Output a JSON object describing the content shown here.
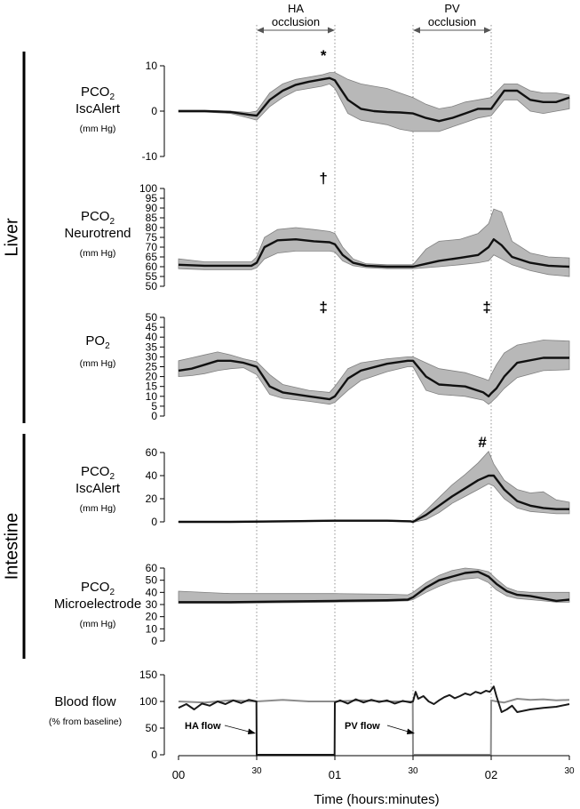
{
  "chart_data": {
    "type": "line",
    "xlabel": "Time (hours:minutes)",
    "x_ticks": [
      {
        "t": 0,
        "label": "00"
      },
      {
        "t": 30,
        "label": "30"
      },
      {
        "t": 60,
        "label": "01"
      },
      {
        "t": 90,
        "label": "30"
      },
      {
        "t": 120,
        "label": "02"
      },
      {
        "t": 150,
        "label": "30"
      }
    ],
    "xlim": [
      0,
      150
    ],
    "occlusions": [
      {
        "label_line1": "HA",
        "label_line2": "occlusion",
        "start": 30,
        "end": 60
      },
      {
        "label_line1": "PV",
        "label_line2": "occlusion",
        "start": 90,
        "end": 120
      }
    ],
    "sections": [
      {
        "name": "Liver",
        "panels": [
          0,
          1,
          2
        ]
      },
      {
        "name": "Intestine",
        "panels": [
          3,
          4
        ]
      }
    ],
    "panels": [
      {
        "id": "liver-pco2-iscalert",
        "label_main": "PCO",
        "label_sub": "2",
        "label_line2": "IscAlert",
        "unit": "(mm Hg)",
        "ylim": [
          -10,
          10
        ],
        "yticks": [
          -10,
          0,
          10
        ],
        "marker": "*",
        "marker_t": 58,
        "series": {
          "t": [
            0,
            10,
            20,
            27,
            30,
            35,
            40,
            45,
            50,
            55,
            58,
            60,
            65,
            70,
            75,
            80,
            85,
            90,
            95,
            100,
            105,
            110,
            115,
            120,
            125,
            130,
            135,
            140,
            145,
            150
          ],
          "mean": [
            0,
            0,
            -0.2,
            -0.8,
            -1,
            2.5,
            4.5,
            5.8,
            6.5,
            7,
            7.3,
            6.8,
            2.5,
            0.5,
            0,
            -0.2,
            -0.3,
            -0.5,
            -1.5,
            -2.2,
            -1.5,
            -0.5,
            0.5,
            0.5,
            4.5,
            4.5,
            2.5,
            2,
            2,
            3
          ],
          "upper": [
            0.2,
            0.2,
            0,
            -0.3,
            0,
            4,
            6,
            7,
            7.5,
            8,
            8.5,
            8.5,
            7,
            6,
            5.5,
            5,
            4,
            3,
            1.5,
            0.5,
            1,
            2,
            2.5,
            3,
            6,
            6,
            4.5,
            4,
            4,
            3.5
          ],
          "lower": [
            -0.2,
            -0.2,
            -0.5,
            -1.5,
            -2,
            1,
            3,
            4.5,
            5,
            5.5,
            6,
            5,
            -0.5,
            -2,
            -2.5,
            -3,
            -4,
            -4.5,
            -4.5,
            -4.5,
            -3.5,
            -2.5,
            -1.5,
            -1,
            2.5,
            2.5,
            0,
            -0.5,
            0,
            0.5
          ]
        }
      },
      {
        "id": "liver-pco2-neurotrend",
        "label_main": "PCO",
        "label_sub": "2",
        "label_line2": "Neurotrend",
        "unit": "(mm Hg)",
        "ylim": [
          50,
          100
        ],
        "yticks": [
          50,
          55,
          60,
          65,
          70,
          75,
          80,
          85,
          90,
          95,
          100
        ],
        "marker": "†",
        "marker_t": 58,
        "series": {
          "t": [
            0,
            10,
            20,
            28,
            30,
            33,
            38,
            45,
            52,
            58,
            60,
            63,
            67,
            72,
            80,
            88,
            90,
            95,
            100,
            108,
            115,
            119,
            121,
            124,
            128,
            135,
            142,
            150
          ],
          "mean": [
            61,
            60.5,
            60.5,
            60.5,
            62,
            70,
            73.5,
            74,
            73,
            72.5,
            71.5,
            66,
            62,
            60.5,
            60,
            60,
            60,
            61.5,
            63,
            64.5,
            66,
            70,
            74,
            71,
            65,
            62,
            60.5,
            60
          ],
          "upper": [
            64,
            62.5,
            62.5,
            62.5,
            65,
            75,
            79,
            80,
            79,
            78,
            77,
            70,
            64,
            61.5,
            61,
            61,
            61,
            69,
            73,
            74,
            77,
            82,
            89.5,
            88,
            73,
            67,
            65,
            64.5
          ],
          "lower": [
            59,
            58.5,
            58.5,
            58.5,
            59.5,
            64,
            67,
            68,
            68,
            68,
            67.5,
            63,
            60.5,
            59.5,
            59,
            59,
            59,
            59.5,
            60,
            61,
            62,
            63,
            66,
            64,
            61,
            58,
            56,
            55
          ]
        }
      },
      {
        "id": "liver-po2",
        "label_main": "PO",
        "label_sub": "2",
        "label_line2": "",
        "unit": "(mm Hg)",
        "ylim": [
          0,
          50
        ],
        "yticks": [
          0,
          5,
          10,
          15,
          20,
          25,
          30,
          35,
          40,
          45,
          50
        ],
        "marker": "‡",
        "marker_t": 58,
        "marker2": "‡",
        "marker2_t": 119,
        "series": {
          "t": [
            0,
            5,
            10,
            15,
            20,
            25,
            30,
            35,
            40,
            50,
            58,
            60,
            65,
            70,
            80,
            88,
            90,
            95,
            100,
            110,
            117,
            119,
            120,
            122,
            125,
            130,
            140,
            150
          ],
          "mean": [
            23,
            24,
            26,
            28,
            28,
            27,
            25,
            15,
            12,
            10,
            8.5,
            10,
            19,
            23,
            26.5,
            28,
            28,
            20,
            16,
            15,
            12,
            10,
            11.5,
            14,
            20,
            27,
            29.5,
            29.5
          ],
          "upper": [
            28,
            29.5,
            31,
            32.5,
            31,
            29,
            27.5,
            21,
            16,
            13,
            12,
            15,
            24,
            27,
            29,
            30,
            30,
            27,
            24,
            22,
            19,
            18,
            21,
            26,
            32,
            36,
            38.5,
            38
          ],
          "lower": [
            20,
            20.5,
            21.5,
            23,
            24,
            24.5,
            21,
            11,
            9,
            7.5,
            6,
            7,
            13,
            18,
            22.5,
            25,
            25,
            13,
            11,
            10,
            8,
            6,
            7,
            9.5,
            14,
            19.5,
            23,
            23.5
          ]
        }
      },
      {
        "id": "intestine-pco2-iscalert",
        "label_main": "PCO",
        "label_sub": "2",
        "label_line2": "IscAlert",
        "unit": "(mm Hg)",
        "ylim": [
          0,
          60
        ],
        "yticks": [
          0,
          20,
          40,
          60
        ],
        "marker": "#",
        "marker_t": 119,
        "series": {
          "t": [
            0,
            20,
            40,
            60,
            80,
            89,
            90,
            95,
            100,
            105,
            110,
            115,
            119,
            121,
            125,
            130,
            135,
            140,
            145,
            150
          ],
          "mean": [
            0,
            0,
            0.5,
            1,
            1,
            0.5,
            0,
            6,
            14,
            22,
            29,
            36,
            40,
            40,
            28,
            18,
            14,
            12,
            11,
            11
          ],
          "upper": [
            0.5,
            0.5,
            1,
            1.5,
            1.5,
            1,
            0.5,
            10,
            21,
            32,
            41,
            51,
            61,
            50,
            36,
            28,
            25,
            26,
            19,
            17
          ],
          "lower": [
            -0.5,
            -0.5,
            0,
            0.5,
            0.5,
            0,
            -0.5,
            2,
            8,
            16,
            22,
            28,
            33,
            31,
            20,
            12,
            9,
            8,
            7,
            7
          ]
        }
      },
      {
        "id": "intestine-pco2-microelectrode",
        "label_main": "PCO",
        "label_sub": "2",
        "label_line2": "Microelectrode",
        "unit": "(mm Hg)",
        "ylim": [
          0,
          60
        ],
        "yticks": [
          0,
          10,
          20,
          30,
          40,
          50,
          60
        ],
        "series": {
          "t": [
            0,
            20,
            40,
            60,
            80,
            88,
            90,
            95,
            100,
            105,
            110,
            115,
            119,
            122,
            126,
            130,
            135,
            140,
            145,
            150
          ],
          "mean": [
            32,
            32,
            32.5,
            33,
            33.5,
            34,
            36,
            44,
            50,
            53,
            56,
            57,
            53,
            47,
            41,
            38,
            37,
            35,
            33,
            34
          ],
          "upper": [
            41,
            39,
            39,
            39,
            38.5,
            38,
            40,
            48,
            54,
            58,
            60,
            59,
            57,
            51,
            44,
            41,
            40,
            40,
            40,
            40
          ],
          "lower": [
            31,
            31,
            31.5,
            32,
            32.5,
            33,
            34,
            40,
            45,
            49,
            51,
            52,
            48,
            42,
            37,
            35,
            34,
            33,
            32,
            32
          ]
        }
      }
    ],
    "blood_flow": {
      "label_line1": "Blood flow",
      "label_line2": "(% from baseline)",
      "ylim": [
        0,
        150
      ],
      "yticks": [
        0,
        50,
        100,
        150
      ],
      "series": [
        {
          "name": "HA flow",
          "color": "#1a1a1a",
          "t": [
            0,
            3,
            6,
            9,
            12,
            15,
            18,
            21,
            24,
            27,
            29.9,
            30,
            59.9,
            60,
            62,
            65,
            68,
            71,
            74,
            77,
            80,
            83,
            86,
            89,
            90,
            91,
            92,
            94,
            96,
            98,
            100,
            102,
            104,
            106,
            108,
            110,
            112,
            114,
            116,
            118,
            119.5,
            121,
            122,
            123,
            124,
            126,
            128,
            130,
            135,
            140,
            145,
            150
          ],
          "values": [
            88,
            95,
            85,
            96,
            92,
            100,
            95,
            102,
            97,
            103,
            100,
            0,
            0,
            98,
            102,
            96,
            104,
            98,
            103,
            99,
            102,
            96,
            101,
            98,
            100,
            118,
            105,
            110,
            100,
            95,
            102,
            108,
            112,
            106,
            110,
            115,
            112,
            118,
            115,
            120,
            118,
            128,
            110,
            95,
            80,
            85,
            92,
            80,
            85,
            88,
            90,
            95
          ]
        },
        {
          "name": "PV flow",
          "color": "#8c8c8c",
          "t": [
            0,
            10,
            20,
            30,
            40,
            50,
            60,
            70,
            80,
            89.9,
            90,
            119.9,
            120,
            122,
            125,
            130,
            135,
            140,
            145,
            150
          ],
          "values": [
            100,
            98,
            102,
            100,
            103,
            100,
            100,
            102,
            100,
            100,
            0,
            0,
            102,
            100,
            98,
            105,
            103,
            104,
            102,
            103
          ]
        }
      ]
    }
  }
}
